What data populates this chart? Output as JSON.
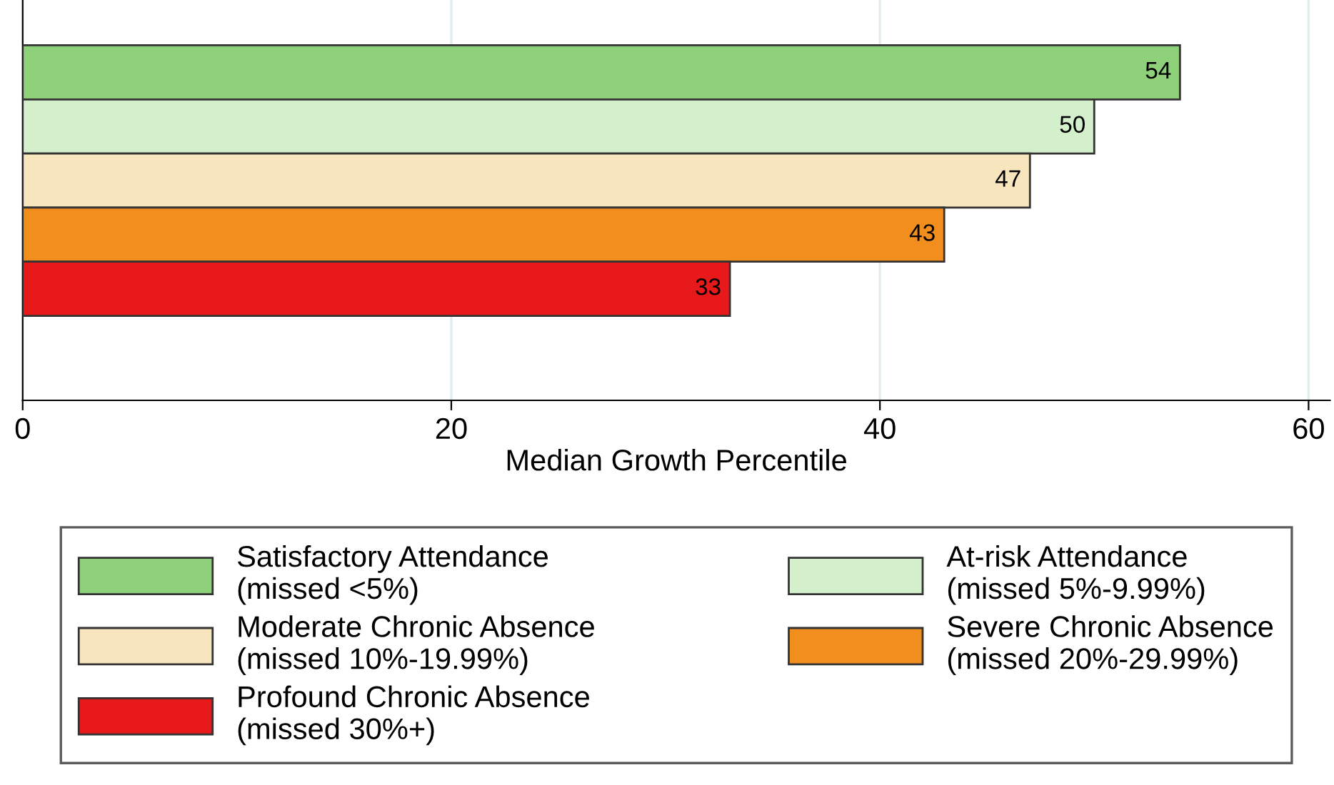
{
  "chart_data": {
    "type": "bar",
    "orientation": "horizontal",
    "categories": [
      null
    ],
    "series": [
      {
        "name": "Satisfactory Attendance\n(missed <5%)",
        "color": "#8fd07a",
        "values": [
          54
        ]
      },
      {
        "name": "At-risk Attendance\n(missed 5%-9.99%)",
        "color": "#d4efcc",
        "values": [
          50
        ]
      },
      {
        "name": "Moderate Chronic Absence\n(missed 10%-19.99%)",
        "color": "#f7e6bd",
        "values": [
          47
        ]
      },
      {
        "name": "Severe Chronic Absence\n(missed 20%-29.99%)",
        "color": "#f28e1e",
        "values": [
          43
        ]
      },
      {
        "name": "Profound Chronic Absence\n(missed 30%+)",
        "color": "#e8191b",
        "values": [
          33
        ]
      }
    ],
    "xlabel": "Median Growth Percentile",
    "xlim": [
      0,
      61
    ],
    "xticks": [
      0,
      20,
      40,
      60
    ],
    "grid": "x",
    "legend": "bottom",
    "data_labels": true,
    "tick_labels": "x"
  }
}
